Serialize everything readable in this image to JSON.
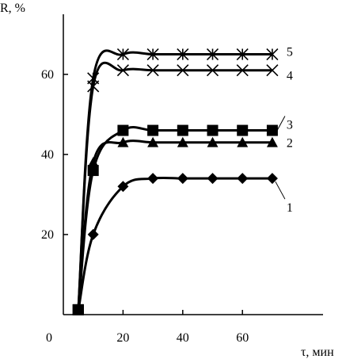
{
  "chart_data": {
    "type": "line",
    "ylabel": "R, %",
    "xlabel": "τ, мин",
    "xlim": [
      0,
      87
    ],
    "ylim": [
      0,
      75
    ],
    "xticks": [
      0,
      20,
      40,
      60
    ],
    "yticks": [
      20,
      40,
      60
    ],
    "grid": false,
    "series": [
      {
        "name": "1",
        "marker": "diamond",
        "x": [
          5,
          10,
          20,
          30,
          40,
          50,
          60,
          70
        ],
        "y": [
          1,
          20,
          32,
          34,
          34,
          34,
          34,
          34
        ]
      },
      {
        "name": "2",
        "marker": "triangle",
        "x": [
          5,
          10,
          20,
          30,
          40,
          50,
          60,
          70
        ],
        "y": [
          1,
          38,
          43,
          43,
          43,
          43,
          43,
          43
        ]
      },
      {
        "name": "3",
        "marker": "square",
        "x": [
          5,
          10,
          20,
          30,
          40,
          50,
          60,
          70
        ],
        "y": [
          1,
          36,
          46,
          46,
          46,
          46,
          46,
          46
        ]
      },
      {
        "name": "4",
        "marker": "x",
        "x": [
          5,
          10,
          20,
          30,
          40,
          50,
          60,
          70
        ],
        "y": [
          1,
          57,
          61,
          61,
          61,
          61,
          61,
          61
        ]
      },
      {
        "name": "5",
        "marker": "asterisk",
        "x": [
          5,
          10,
          20,
          30,
          40,
          50,
          60,
          70
        ],
        "y": [
          1,
          59,
          65,
          65,
          65,
          65,
          65,
          65
        ]
      }
    ]
  }
}
